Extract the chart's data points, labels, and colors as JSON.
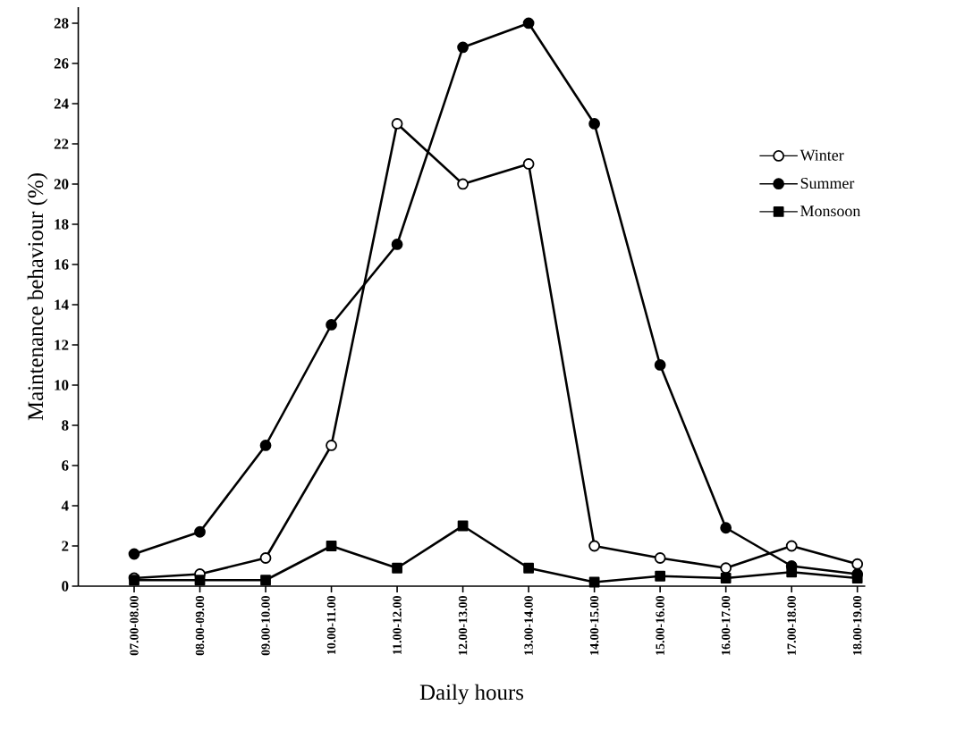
{
  "chart_data": {
    "type": "line",
    "xlabel": "Daily hours",
    "ylabel": "Maintenance behaviour (%)",
    "categories": [
      "07.00-08.00",
      "08.00-09.00",
      "09.00-10.00",
      "10.00-11.00",
      "11.00-12.00",
      "12.00-13.00",
      "13.00-14.00",
      "14.00-15.00",
      "15.00-16.00",
      "16.00-17.00",
      "17.00-18.00",
      "18.00-19.00"
    ],
    "series": [
      {
        "name": "Winter",
        "color": "#000000",
        "marker": "circle",
        "values": [
          0.4,
          0.6,
          1.4,
          7,
          23,
          20,
          21,
          2,
          1.4,
          0.9,
          2,
          1.1
        ]
      },
      {
        "name": "Summer",
        "color": "#000000",
        "marker": "circle",
        "values": [
          1.6,
          2.7,
          7,
          13,
          17,
          26.8,
          28,
          23,
          11,
          2.9,
          1,
          0.6
        ]
      },
      {
        "name": "Monsoon",
        "color": "#000000",
        "marker": "square",
        "values": [
          0.3,
          0.3,
          0.3,
          2,
          0.9,
          3,
          0.9,
          0.2,
          0.5,
          0.4,
          0.7,
          0.4
        ]
      }
    ],
    "ylim": [
      0,
      28.8
    ],
    "yticks": [
      0,
      2,
      4,
      6,
      8,
      10,
      12,
      14,
      16,
      18,
      20,
      22,
      24,
      26,
      28
    ],
    "grid": false,
    "legend": "right",
    "line_style": "solid"
  }
}
